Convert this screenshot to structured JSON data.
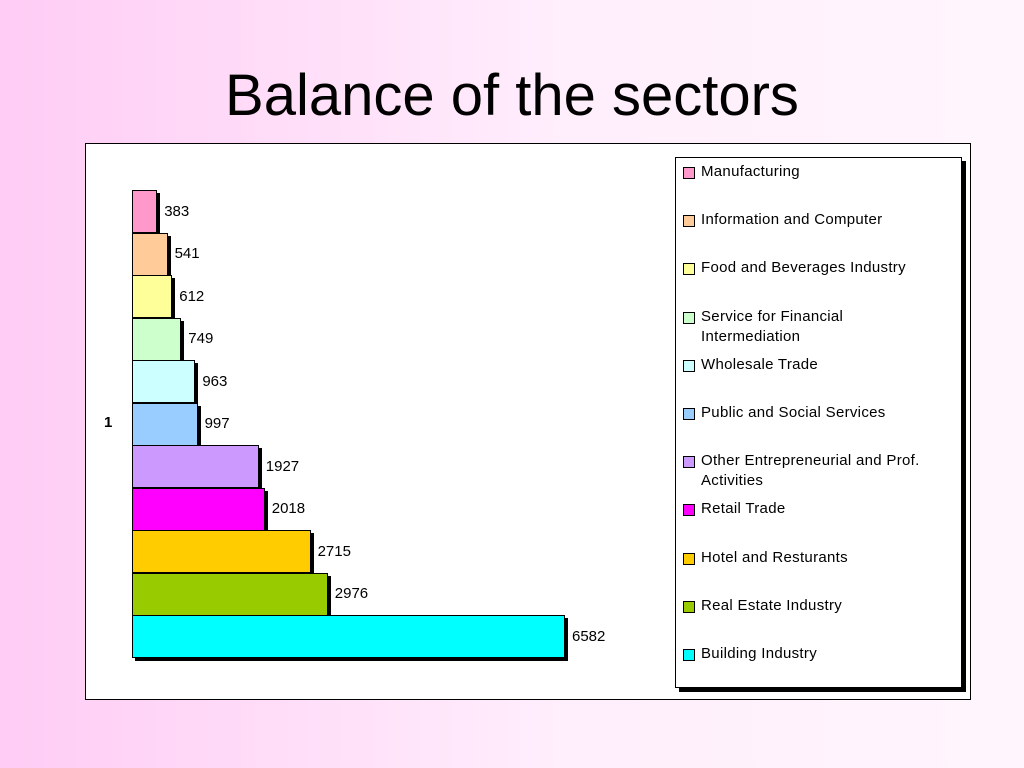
{
  "chart_data": {
    "type": "bar",
    "orientation": "horizontal",
    "title": "Balance of the sectors",
    "categories": [
      "1"
    ],
    "series": [
      {
        "name": "Manufacturing",
        "color": "#ff99cc",
        "values": [
          383
        ]
      },
      {
        "name": "Information and Computer",
        "color": "#ffcc99",
        "values": [
          541
        ]
      },
      {
        "name": "Food and Beverages Industry",
        "color": "#ffff99",
        "values": [
          612
        ]
      },
      {
        "name": "Service for Financial Intermediation",
        "color": "#ccffcc",
        "values": [
          749
        ]
      },
      {
        "name": "Wholesale Trade",
        "color": "#ccffff",
        "values": [
          963
        ]
      },
      {
        "name": "Public and Social Services",
        "color": "#99ccff",
        "values": [
          997
        ]
      },
      {
        "name": "Other Entrepreneurial and Prof. Activities",
        "color": "#cc99ff",
        "values": [
          1927
        ]
      },
      {
        "name": "Retail Trade",
        "color": "#ff00ff",
        "values": [
          2018
        ]
      },
      {
        "name": "Hotel and Resturants",
        "color": "#ffcc00",
        "values": [
          2715
        ]
      },
      {
        "name": "Real Estate Industry",
        "color": "#99cc00",
        "values": [
          2976
        ]
      },
      {
        "name": "Building Industry",
        "color": "#00ffff",
        "values": [
          6582
        ]
      }
    ],
    "legend": "right"
  }
}
